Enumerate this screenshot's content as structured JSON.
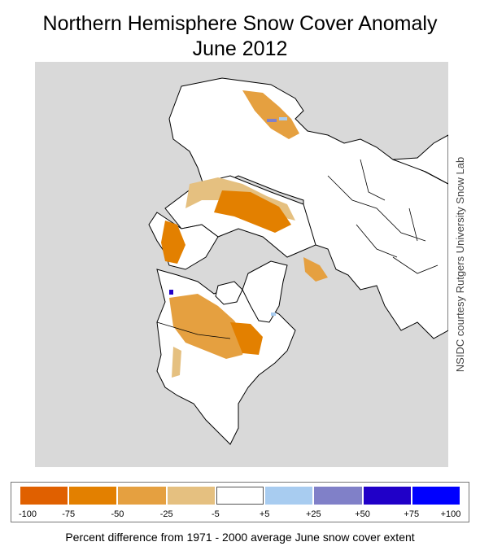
{
  "title": {
    "line1": "Northern Hemisphere Snow Cover Anomaly",
    "line2": "June 2012"
  },
  "credit": "NSIDC courtesy Rutgers University Snow Lab",
  "caption": "Percent difference from 1971 - 2000 average June snow cover extent",
  "legend": {
    "bins": [
      {
        "color": "#e06000",
        "meaning": "-100 to -75"
      },
      {
        "color": "#e38000",
        "meaning": "-75 to -50"
      },
      {
        "color": "#e5a040",
        "meaning": "-50 to -25"
      },
      {
        "color": "#e5c080",
        "meaning": "-25 to -5"
      },
      {
        "color": "#ffffff",
        "meaning": "-5 to +5"
      },
      {
        "color": "#a8ccf0",
        "meaning": "+5 to +25"
      },
      {
        "color": "#8080c8",
        "meaning": "+25 to +50"
      },
      {
        "color": "#2000c8",
        "meaning": "+50 to +75"
      },
      {
        "color": "#0000ff",
        "meaning": "+75 to +100"
      }
    ],
    "ticks": [
      "-100",
      "-75",
      "-50",
      "-25",
      "-5",
      "+5",
      "+25",
      "+50",
      "+75",
      "+100"
    ]
  },
  "colors": {
    "ocean": "#d9d9d9",
    "land": "#ffffff",
    "coast": "#000000"
  }
}
